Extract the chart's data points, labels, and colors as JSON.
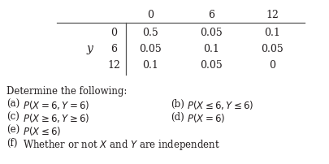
{
  "col_headers": [
    "0",
    "6",
    "12"
  ],
  "row_headers": [
    "0",
    "6",
    "12"
  ],
  "y_label": "y",
  "table_data": [
    [
      "0.5",
      "0.05",
      "0.1"
    ],
    [
      "0.05",
      "0.1",
      "0.05"
    ],
    [
      "0.1",
      "0.05",
      "0"
    ]
  ],
  "qa_left": [
    {
      "label": "(a)",
      "text": "$P(X = 6, Y = 6)$"
    },
    {
      "label": "(c)",
      "text": "$P(X \\geq 6, Y \\geq 6)$"
    },
    {
      "label": "(e)",
      "text": "$P(X \\leq 6)$"
    },
    {
      "label": "(f)",
      "text": "Whether or not $X$ and $Y$ are independent"
    }
  ],
  "qa_right": [
    {
      "label": "(b)",
      "text": "$P(X \\leq 6, Y \\leq 6)$"
    },
    {
      "label": "(d)",
      "text": "$P(X = 6)$"
    }
  ],
  "determine_text": "Determine the following:",
  "bg_color": "#ffffff",
  "text_color": "#231f20",
  "font_size": 8.5,
  "table_font_size": 9.0
}
